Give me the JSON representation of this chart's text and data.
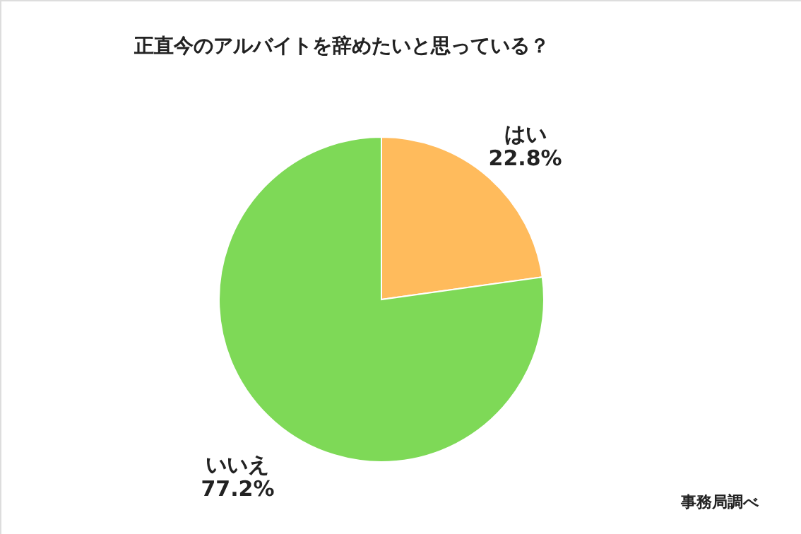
{
  "chart_data": {
    "type": "pie",
    "title": "正直今のアルバイトを辞めたいと思っている？",
    "categories": [
      "はい",
      "いいえ"
    ],
    "values": [
      22.8,
      77.2
    ],
    "colors": [
      "#ffbb5c",
      "#7ed957"
    ],
    "value_labels": [
      "22.8%",
      "77.2%"
    ],
    "legend": false,
    "annotations": [
      "事務局調べ"
    ]
  }
}
